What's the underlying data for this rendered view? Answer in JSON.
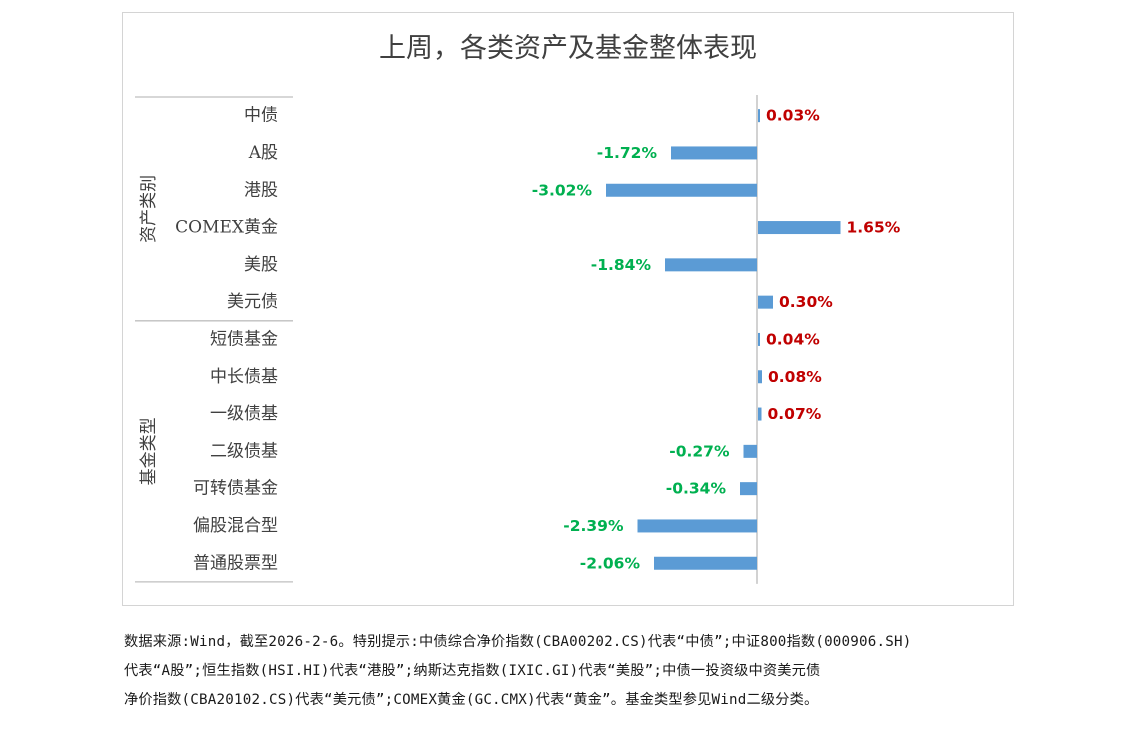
{
  "chart_data": {
    "type": "bar",
    "orientation": "horizontal",
    "title": "上周，各类资产及基金整体表现",
    "groups": [
      {
        "label": "资产类别",
        "categories": [
          "中债",
          "A股",
          "港股",
          "COMEX黄金",
          "美股",
          "美元债"
        ]
      },
      {
        "label": "基金类型",
        "categories": [
          "短债基金",
          "中长债基",
          "一级债基",
          "二级债基",
          "可转债基金",
          "偏股混合型",
          "普通股票型"
        ]
      }
    ],
    "categories": [
      "中债",
      "A股",
      "港股",
      "COMEX黄金",
      "美股",
      "美元债",
      "短债基金",
      "中长债基",
      "一级债基",
      "二级债基",
      "可转债基金",
      "偏股混合型",
      "普通股票型"
    ],
    "values": [
      0.03,
      -1.72,
      -3.02,
      1.65,
      -1.84,
      0.3,
      0.04,
      0.08,
      0.07,
      -0.27,
      -0.34,
      -2.39,
      -2.06
    ],
    "labels": [
      "0.03%",
      "-1.72%",
      "-3.02%",
      "1.65%",
      "-1.84%",
      "0.30%",
      "0.04%",
      "0.08%",
      "0.07%",
      "-0.27%",
      "-0.34%",
      "-2.39%",
      "-2.06%"
    ],
    "unit": "%",
    "xlim": [
      -3.02,
      1.65
    ],
    "colors": {
      "bar": "#5b9bd5",
      "positive_label": "#c00000",
      "negative_label": "#00b050",
      "axis": "#bfbfbf",
      "text": "#404040"
    }
  },
  "footnote": {
    "lines": [
      "数据来源:Wind，截至2026-2-6。特别提示:中债综合净价指数(CBA00202.CS)代表“中债”;中证800指数(000906.SH)",
      "代表“A股”;恒生指数(HSI.HI)代表“港股”;纳斯达克指数(IXIC.GI)代表“美股”;中债一投资级中资美元债",
      "净价指数(CBA20102.CS)代表“美元债”;COMEX黄金(GC.CMX)代表“黄金”。基金类型参见Wind二级分类。"
    ]
  }
}
